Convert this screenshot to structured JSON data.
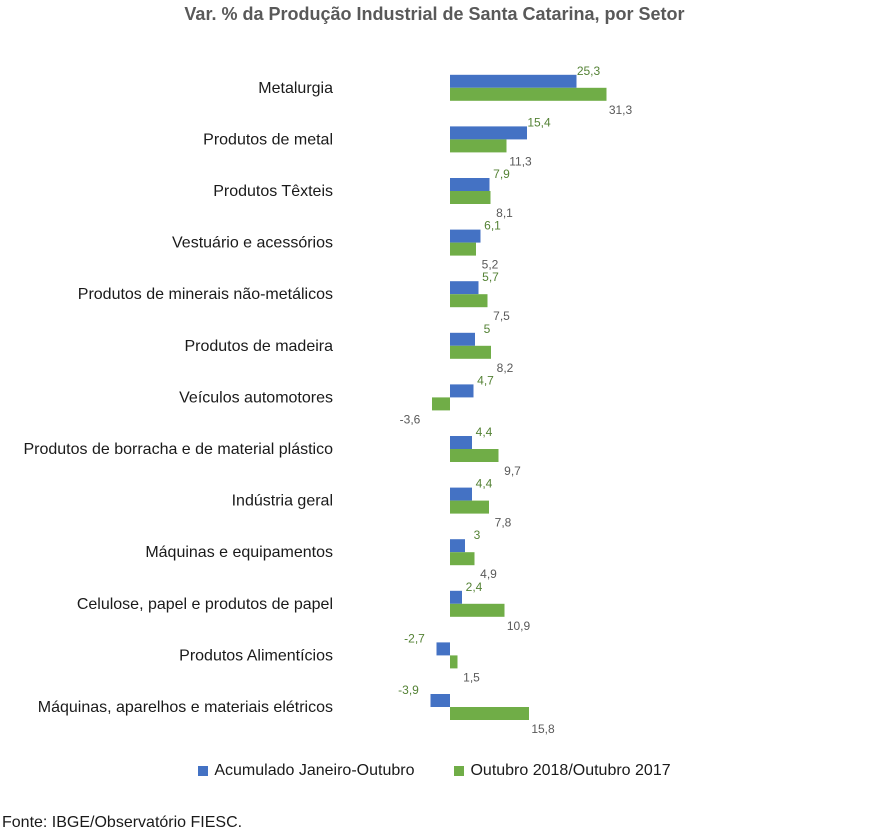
{
  "chart_data": {
    "type": "bar",
    "orientation": "horizontal",
    "title": "Var. % da Produção Industrial de Santa Catarina, por Setor",
    "categories": [
      "Metalurgia",
      "Produtos de metal",
      "Produtos Têxteis",
      "Vestuário e acessórios",
      "Produtos de minerais não-metálicos",
      "Produtos de madeira",
      "Veículos automotores",
      "Produtos de borracha e de material plástico",
      "Indústria geral",
      "Máquinas e equipamentos",
      "Celulose, papel e produtos de papel",
      "Produtos Alimentícios",
      "Máquinas, aparelhos e materiais elétricos"
    ],
    "series": [
      {
        "name": "Acumulado Janeiro-Outubro",
        "color": "#4472C4",
        "label_color": "#548235",
        "values": [
          25.3,
          15.4,
          7.9,
          6.1,
          5.7,
          5,
          4.7,
          4.4,
          4.4,
          3,
          2.4,
          -2.7,
          -3.9
        ],
        "labels": [
          "25,3",
          "15,4",
          "7,9",
          "6,1",
          "5,7",
          "5",
          "4,7",
          "4,4",
          "4,4",
          "3",
          "2,4",
          "-2,7",
          "-3,9"
        ]
      },
      {
        "name": "Outubro 2018/Outubro 2017",
        "color": "#70AD47",
        "label_color": "#595959",
        "values": [
          31.3,
          11.3,
          8.1,
          5.2,
          7.5,
          8.2,
          -3.6,
          9.7,
          7.8,
          4.9,
          10.9,
          1.5,
          15.8
        ],
        "labels": [
          "31,3",
          "11,3",
          "8,1",
          "5,2",
          "7,5",
          "8,2",
          "-3,6",
          "9,7",
          "7,8",
          "4,9",
          "10,9",
          "1,5",
          "15,8"
        ]
      }
    ],
    "legend_position": "bottom",
    "grid": false
  },
  "source": "Fonte: IBGE/Observatório FIESC."
}
